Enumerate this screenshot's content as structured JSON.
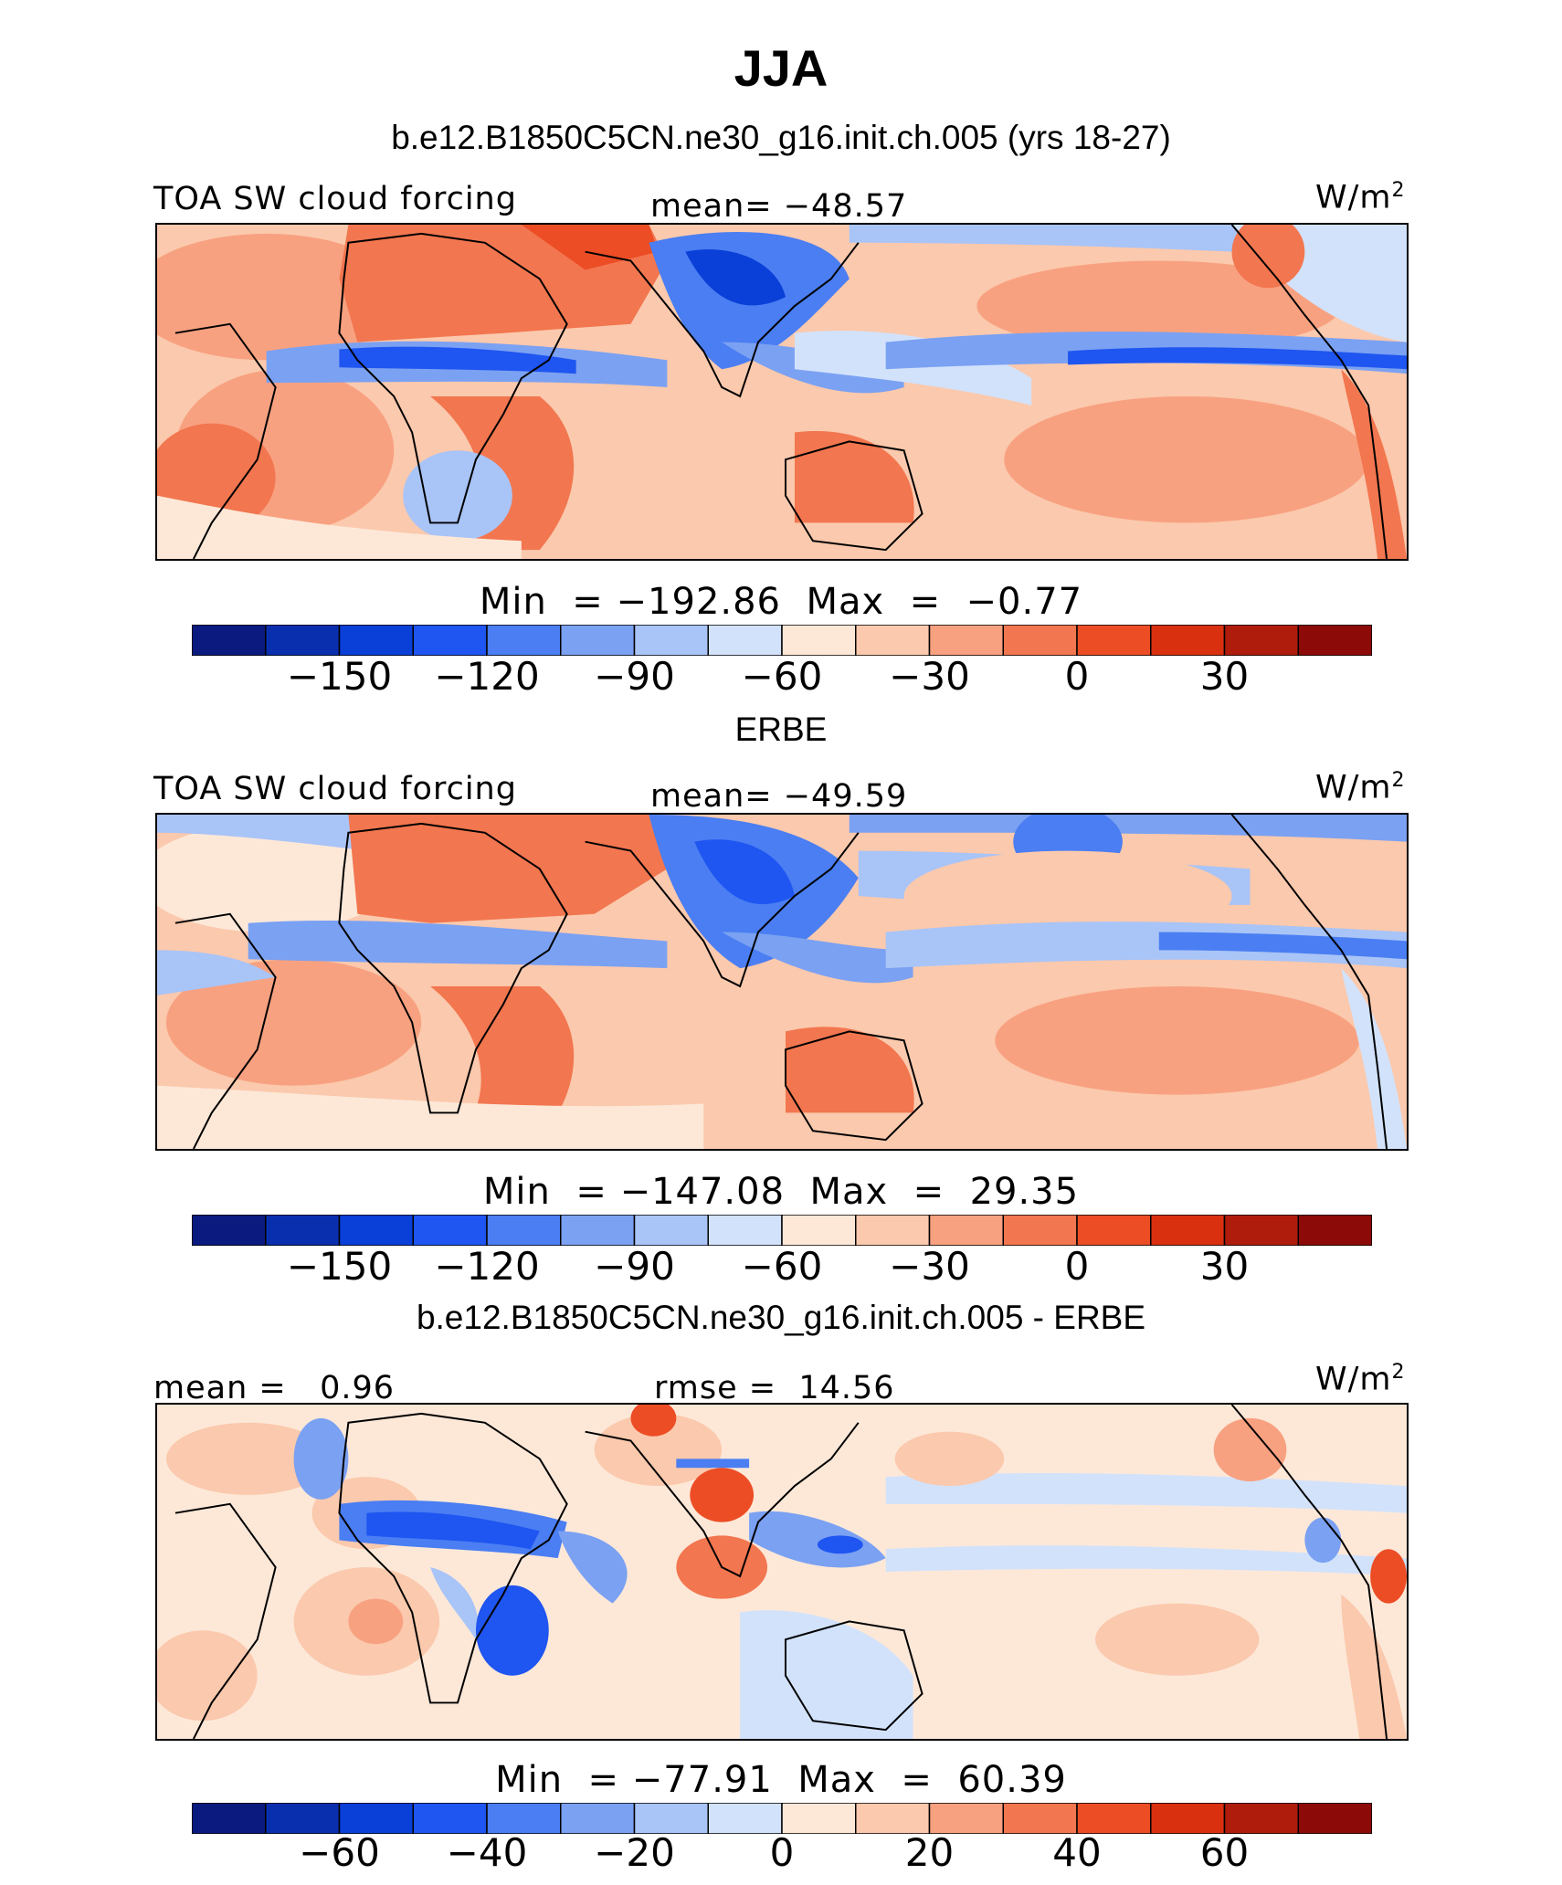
{
  "title": "JJA",
  "colors": [
    "#0a1a7f",
    "#0a2fae",
    "#0a3fd8",
    "#1f55f0",
    "#4a7ef2",
    "#7ba1f2",
    "#a9c4f7",
    "#d2e2fb",
    "#fde8d8",
    "#fbc9ad",
    "#f8a180",
    "#f2764f",
    "#ec4d25",
    "#d93010",
    "#b01c0c",
    "#8c0a08"
  ],
  "chart_data": [
    {
      "type": "heatmap",
      "title": "b.e12.B1850C5CN.ne30_g16.init.ch.005 (yrs 18-27)",
      "variable": "TOA SW cloud forcing",
      "units": "W/m",
      "units_exp": "2",
      "stat_label": "mean=",
      "stat_value": "−48.57",
      "min_label": "Min  =",
      "min_value": "−192.86",
      "max_label": "Max  =",
      "max_value": "−0.77",
      "levels": [
        -150,
        -120,
        -90,
        -60,
        -30,
        0,
        30
      ],
      "tick_labels": [
        "−150",
        "−120",
        "−90",
        "−60",
        "−30",
        "0",
        "30"
      ]
    },
    {
      "type": "heatmap",
      "title": "ERBE",
      "variable": "TOA SW cloud forcing",
      "units": "W/m",
      "units_exp": "2",
      "stat_label": "mean=",
      "stat_value": "−49.59",
      "min_label": "Min  =",
      "min_value": "−147.08",
      "max_label": "Max  =",
      "max_value": "29.35",
      "levels": [
        -150,
        -120,
        -90,
        -60,
        -30,
        0,
        30
      ],
      "tick_labels": [
        "−150",
        "−120",
        "−90",
        "−60",
        "−30",
        "0",
        "30"
      ]
    },
    {
      "type": "heatmap",
      "title": "b.e12.B1850C5CN.ne30_g16.init.ch.005 - ERBE",
      "stat_label": "mean =",
      "stat_value": "0.96",
      "stat2_label": "rmse =",
      "stat2_value": "14.56",
      "units": "W/m",
      "units_exp": "2",
      "min_label": "Min  =",
      "min_value": "−77.91",
      "max_label": "Max  =",
      "max_value": "60.39",
      "levels": [
        -60,
        -40,
        -20,
        0,
        20,
        40,
        60
      ],
      "tick_labels": [
        "−60",
        "−40",
        "−20",
        "0",
        "20",
        "40",
        "60"
      ]
    }
  ]
}
